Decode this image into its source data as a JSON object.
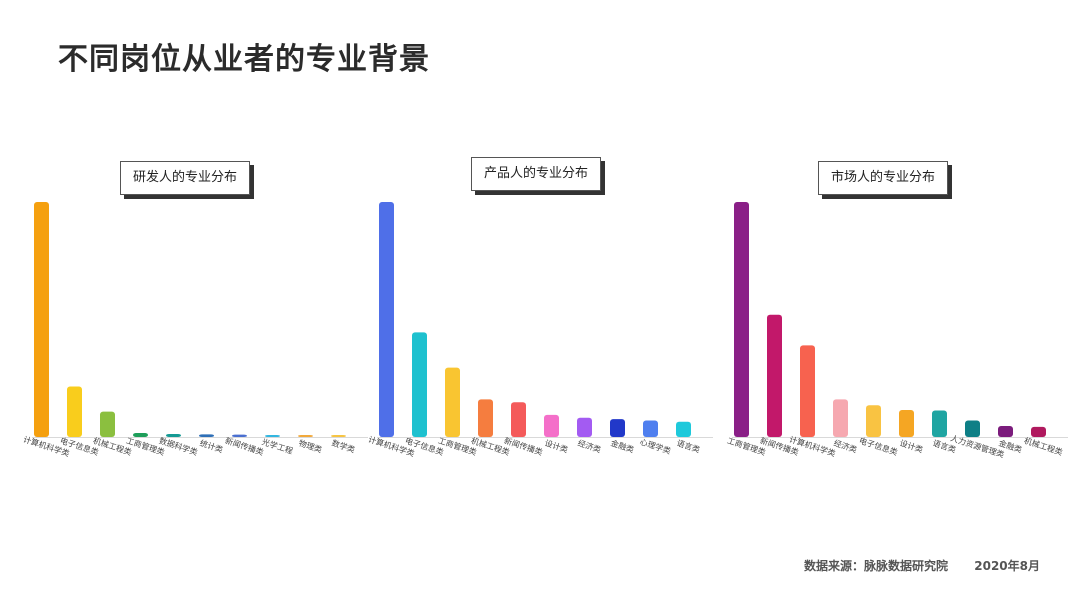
{
  "page": {
    "title": "不同岗位从业者的专业背景",
    "source": "数据来源：脉脉数据研究院",
    "date": "2020年8月"
  },
  "chart_data": [
    {
      "type": "bar",
      "title": "研发人的专业分布",
      "categories": [
        "计算机科学类",
        "电子信息类",
        "机械工程类",
        "工商管理类",
        "数据科学类",
        "统计类",
        "新闻传播类",
        "光学工程",
        "物理类",
        "数学类"
      ],
      "values": [
        100,
        21.5,
        10.8,
        1.7,
        1.3,
        1.1,
        1.0,
        0.8,
        0.8,
        0.7
      ],
      "colors": [
        "#F5A00F",
        "#F9CD1C",
        "#8BBF3F",
        "#1E9E5A",
        "#159A94",
        "#2E6FB7",
        "#4A6FD0",
        "#33B6E0",
        "#F2A93B",
        "#F6C443"
      ]
    },
    {
      "type": "bar",
      "title": "产品人的专业分布",
      "categories": [
        "计算机科学类",
        "电子信息类",
        "工商管理类",
        "机械工程类",
        "新闻传播类",
        "设计类",
        "经济类",
        "金融类",
        "心理学类",
        "语言类"
      ],
      "values": [
        100,
        44.5,
        29.5,
        16,
        14.8,
        9.4,
        8.2,
        7.6,
        7.0,
        6.5
      ],
      "colors": [
        "#4F6FE8",
        "#1EC1CF",
        "#F9C531",
        "#F57D3F",
        "#F45A5A",
        "#F46FC9",
        "#A35BF2",
        "#2138C9",
        "#4F7FEF",
        "#1EC9DB"
      ]
    },
    {
      "type": "bar",
      "title": "市场人的专业分布",
      "categories": [
        "工商管理类",
        "新闻传播类",
        "计算机科学类",
        "经济类",
        "电子信息类",
        "设计类",
        "语言类",
        "人力资源管理类",
        "金融类",
        "机械工程类"
      ],
      "values": [
        100,
        52,
        39,
        16,
        13.5,
        11.5,
        11.3,
        7.0,
        4.7,
        4.3
      ],
      "colors": [
        "#8A1F87",
        "#C2186A",
        "#F7624F",
        "#F6A8B0",
        "#F9C342",
        "#F5A623",
        "#1FA5A2",
        "#0E7F86",
        "#7B1C7C",
        "#B0195E"
      ]
    }
  ]
}
